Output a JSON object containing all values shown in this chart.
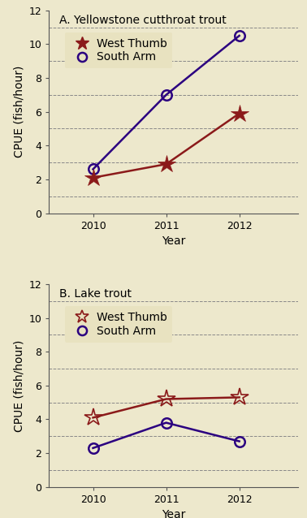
{
  "panel_A": {
    "title": "A. Yellowstone cutthroat trout",
    "west_thumb": [
      2.1,
      2.9,
      5.9
    ],
    "south_arm": [
      2.6,
      7.0,
      10.5
    ],
    "years": [
      2010,
      2011,
      2012
    ]
  },
  "panel_B": {
    "title": "B. Lake trout",
    "west_thumb": [
      4.1,
      5.2,
      5.3
    ],
    "south_arm": [
      2.3,
      3.8,
      2.7
    ],
    "years": [
      2010,
      2011,
      2012
    ]
  },
  "ylabel": "CPUE (fish/hour)",
  "xlabel": "Year",
  "ylim": [
    0,
    12
  ],
  "yticks": [
    0,
    2,
    4,
    6,
    8,
    10,
    12
  ],
  "grid_ticks": [
    1,
    3,
    5,
    7,
    9,
    11
  ],
  "west_thumb_color": "#8B1A1A",
  "south_arm_color": "#2B0080",
  "bg_color": "#EDE8CC",
  "legend_bg_A": "#E8E2C0",
  "line_width": 1.8,
  "marker_size_star": 16,
  "marker_size_circle": 9,
  "spine_color": "#555555",
  "tick_label_size": 9,
  "axis_label_size": 10,
  "title_size": 10
}
